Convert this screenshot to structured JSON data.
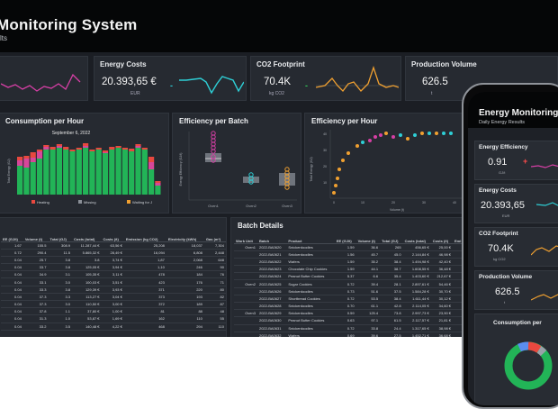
{
  "monitor": {
    "title": "Monitoring System",
    "subtitle": "lts",
    "kpis": [
      {
        "title": "",
        "value": "",
        "unit": "",
        "trend_color": "#d63fa5"
      },
      {
        "title": "Energy Costs",
        "value": "20.393,65 €",
        "unit": "EUR",
        "sign": "-",
        "sign_color": "#2ecfd6",
        "trend_color": "#2ecfd6"
      },
      {
        "title": "CO2 Footprint",
        "value": "70.4K",
        "unit": "kg CO2",
        "sign": "-",
        "sign_color": "#34c759",
        "trend_color": "#f0a030"
      },
      {
        "title": "Production Volume",
        "value": "626.5",
        "unit": "t",
        "sign": "-",
        "sign_color": "#34c759",
        "trend_color": "#f0a030"
      }
    ],
    "consumption": {
      "title": "Consumption per Hour",
      "date": "September 6, 2022",
      "ylabel": "Total Energy (GJ)",
      "legend": [
        "Heating",
        "Missing",
        "Waiting for J"
      ]
    },
    "efficiency_batch": {
      "title": "Efficiency per Batch",
      "ylabel": "Energy Efficiency (GJ/t)",
      "categories": [
        "Oven1",
        "Oven2",
        "Oven3"
      ]
    },
    "efficiency_hour": {
      "title": "Efficiency per Hour",
      "ylabel": "Total Energy (GJ)",
      "xlabel": "Volume (t)",
      "x_ticks": [
        "0",
        "10",
        "20",
        "30",
        "40"
      ],
      "y_ticks": [
        "10",
        "20",
        "30",
        "40"
      ]
    },
    "left_table": {
      "headers": [
        "EE (GJ/t)",
        "Volume (t)",
        "Total (GJ)",
        "Costs (total)",
        "Costs (/t)",
        "Emission (kg CO2)",
        "Electricity (kWh)",
        "Gas (m³)"
      ],
      "rows": [
        [
          "1.67",
          "155.5",
          "308.9",
          "11.287,44 €",
          "63,56 €",
          "25,208",
          "18,037",
          "7,304"
        ],
        [
          "0.72",
          "290.4",
          "11.5",
          "5.865,32 €",
          "28,49 €",
          "16,094",
          "6,808",
          "2,448"
        ],
        [
          "0.04",
          "25.7",
          "3.8",
          "3.8",
          "3,74 €",
          "1,87",
          "2,068",
          "648"
        ],
        [
          "0.04",
          "33.7",
          "3.8",
          "125,05 €",
          "3,94 €",
          "1,10",
          "246",
          "90"
        ],
        [
          "0.04",
          "34.9",
          "3.1",
          "105,35 €",
          "3,11 €",
          "478",
          "184",
          "76"
        ],
        [
          "0.04",
          "33.1",
          "3.0",
          "100,03 €",
          "3,51 €",
          "423",
          "176",
          "71"
        ],
        [
          "0.04",
          "33.3",
          "3.8",
          "129,39 €",
          "3,93 €",
          "371",
          "220",
          "80"
        ],
        [
          "0.04",
          "37.3",
          "3.3",
          "113,27 €",
          "3,04 €",
          "373",
          "193",
          "82"
        ],
        [
          "0.04",
          "37.3",
          "3.0",
          "110,50 €",
          "3,00 €",
          "372",
          "189",
          "87"
        ],
        [
          "0.04",
          "37.8",
          "1.1",
          "37,80 €",
          "1,00 €",
          "81",
          "88",
          "48"
        ],
        [
          "0.04",
          "31.3",
          "1.0",
          "53,87 €",
          "1,69 €",
          "162",
          "110",
          "55"
        ],
        [
          "0.04",
          "33.2",
          "3.5",
          "140,48 €",
          "4,22 €",
          "468",
          "294",
          "110"
        ]
      ]
    },
    "batch_details": {
      "title": "Batch Details",
      "headers": [
        "Work Unit",
        "Batch",
        "Product",
        "EE (GJ/t)",
        "Volume (t)",
        "Total (GJ)",
        "Costs (total)",
        "Costs (/t)",
        "Emi"
      ],
      "rows": [
        [
          "Oven1",
          "2022-BA0620",
          "Snickerdoodles",
          "1.59",
          "36.6",
          "265",
          "456,65 €",
          "25,00 €",
          ""
        ],
        [
          "",
          "2022-BA0621",
          "Snickerdoodles",
          "1.56",
          "45.7",
          "45.0",
          "2.144,84 €",
          "46,98 €",
          ""
        ],
        [
          "",
          "2022-BA0622",
          "Wafers",
          "1.59",
          "35.2",
          "38.4",
          "1.494,98 €",
          "42,40 €",
          ""
        ],
        [
          "",
          "2022-BA0623",
          "Chocolate Chip Cookies",
          "1.59",
          "44.1",
          "38.7",
          "1.608,55 €",
          "36,48 €",
          ""
        ],
        [
          "",
          "2022-BA0624",
          "Peanut Butter Cookies",
          "5.37",
          "6.6",
          "35.4",
          "1.403,60 €",
          "212,67 €",
          ""
        ],
        [
          "Oven2",
          "2022-BA0625",
          "Sugar Cookies",
          "0.72",
          "39.4",
          "28.1",
          "2.897,61 €",
          "54,46 €",
          ""
        ],
        [
          "",
          "2022-BA0626",
          "Snickerdoodles",
          "0.73",
          "51.6",
          "37.5",
          "1.584,28 €",
          "30,70 €",
          ""
        ],
        [
          "",
          "2022-BA0627",
          "Shortbread Cookies",
          "0.72",
          "53.5",
          "38.4",
          "1.611,44 €",
          "30,12 €",
          ""
        ],
        [
          "",
          "2022-BA0628",
          "Snickerdoodles",
          "0.70",
          "61.1",
          "42.8",
          "2.114,05 €",
          "34,60 €",
          ""
        ],
        [
          "Oven3",
          "2022-BA0629",
          "Snickerdoodles",
          "0.59",
          "125.4",
          "73.8",
          "2.997,73 €",
          "23,90 €",
          ""
        ],
        [
          "",
          "2022-BA0630",
          "Peanut Butter Cookies",
          "0.63",
          "97.1",
          "61.5",
          "2.117,57 €",
          "21,81 €",
          ""
        ],
        [
          "",
          "2022-BA0631",
          "Snickerdoodles",
          "0.72",
          "33.8",
          "24.4",
          "1.317,65 €",
          "38,98 €",
          ""
        ],
        [
          "",
          "2022-BA0632",
          "Wafers",
          "0.69",
          "39.6",
          "27.5",
          "1.452,71 €",
          "36,68 €",
          ""
        ]
      ]
    }
  },
  "phone": {
    "title": "Energy Monitoring",
    "subtitle": "Daily Energy Results",
    "cards": [
      {
        "title": "Energy Efficiency",
        "value": "0.91",
        "unit": "GJ/t",
        "sign": "+",
        "sign_color": "#ff4b4b",
        "trend_color": "#d63fa5"
      },
      {
        "title": "Energy Costs",
        "value": "20.393,65",
        "unit": "EUR",
        "sign": "",
        "sign_color": "#2ecfd6",
        "trend_color": "#2ecfd6"
      },
      {
        "title": "CO2 Footprint",
        "value": "70.4K",
        "unit": "kg CO2",
        "sign": "",
        "sign_color": "#34c759",
        "trend_color": "#f0a030"
      },
      {
        "title": "Production Volume",
        "value": "626.5",
        "unit": "t",
        "sign": "",
        "sign_color": "#34c759",
        "trend_color": "#f0a030"
      }
    ],
    "consumption_title": "Consumption per"
  }
}
